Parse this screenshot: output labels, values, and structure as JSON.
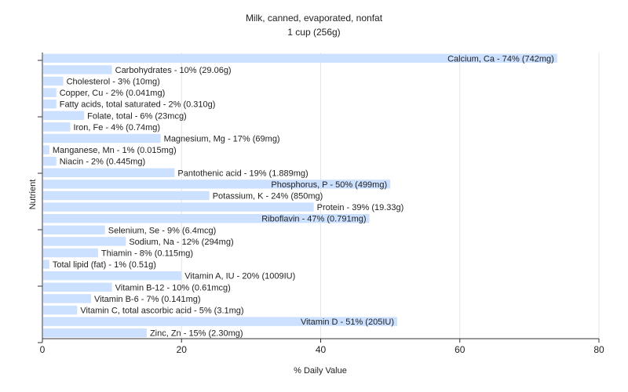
{
  "chart_data": {
    "type": "bar",
    "orientation": "horizontal",
    "title": "Milk, canned, evaporated, nonfat",
    "subtitle": "1 cup (256g)",
    "xlabel": "% Daily Value",
    "ylabel": "Nutrient",
    "xlim": [
      0,
      80
    ],
    "xticks": [
      0,
      20,
      40,
      60,
      80
    ],
    "grid": true,
    "legend": "none",
    "bar_color": "#cce0ff",
    "grid_color": "#e6e6e6",
    "categories": [
      "Calcium, Ca",
      "Carbohydrates",
      "Cholesterol",
      "Copper, Cu",
      "Fatty acids, total saturated",
      "Folate, total",
      "Iron, Fe",
      "Magnesium, Mg",
      "Manganese, Mn",
      "Niacin",
      "Pantothenic acid",
      "Phosphorus, P",
      "Potassium, K",
      "Protein",
      "Riboflavin",
      "Selenium, Se",
      "Sodium, Na",
      "Thiamin",
      "Total lipid (fat)",
      "Vitamin A, IU",
      "Vitamin B-12",
      "Vitamin B-6",
      "Vitamin C, total ascorbic acid",
      "Vitamin D",
      "Zinc, Zn"
    ],
    "values": [
      74,
      10,
      3,
      2,
      2,
      6,
      4,
      17,
      1,
      2,
      19,
      50,
      24,
      39,
      47,
      9,
      12,
      8,
      1,
      20,
      10,
      7,
      5,
      51,
      15
    ],
    "labels": [
      "Calcium, Ca - 74% (742mg)",
      "Carbohydrates - 10% (29.06g)",
      "Cholesterol - 3% (10mg)",
      "Copper, Cu - 2% (0.041mg)",
      "Fatty acids, total saturated - 2% (0.310g)",
      "Folate, total - 6% (23mcg)",
      "Iron, Fe - 4% (0.74mg)",
      "Magnesium, Mg - 17% (69mg)",
      "Manganese, Mn - 1% (0.015mg)",
      "Niacin - 2% (0.445mg)",
      "Pantothenic acid - 19% (1.889mg)",
      "Phosphorus, P - 50% (499mg)",
      "Potassium, K - 24% (850mg)",
      "Protein - 39% (19.33g)",
      "Riboflavin - 47% (0.791mg)",
      "Selenium, Se - 9% (6.4mcg)",
      "Sodium, Na - 12% (294mg)",
      "Thiamin - 8% (0.115mg)",
      "Total lipid (fat) - 1% (0.51g)",
      "Vitamin A, IU - 20% (1009IU)",
      "Vitamin B-12 - 10% (0.61mcg)",
      "Vitamin B-6 - 7% (0.141mg)",
      "Vitamin C, total ascorbic acid - 5% (3.1mg)",
      "Vitamin D - 51% (205IU)",
      "Zinc, Zn - 15% (2.30mg)"
    ]
  }
}
